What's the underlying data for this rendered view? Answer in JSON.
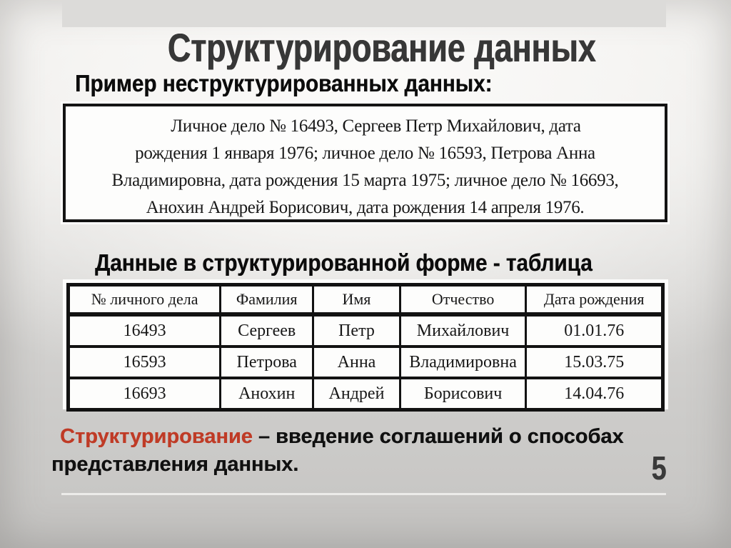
{
  "slide": {
    "title": "Структурирование данных",
    "page_number": "5"
  },
  "unstructured": {
    "label": "Пример неструктурированных данных:",
    "lines": [
      "Личное дело № 16493, Сергеев Петр Михайлович, дата",
      "рождения 1 января 1976; личное дело № 16593, Петрова Анна",
      "Владимировна, дата рождения 15 марта 1975; личное дело № 16693,",
      "Анохин Андрей Борисович, дата рождения 14 апреля 1976."
    ]
  },
  "structured": {
    "label": "Данные в структурированной форме - таблица",
    "table": {
      "headers": [
        "№ личного дела",
        "Фамилия",
        "Имя",
        "Отчество",
        "Дата рождения"
      ],
      "rows": [
        [
          "16493",
          "Сергеев",
          "Петр",
          "Михайлович",
          "01.01.76"
        ],
        [
          "16593",
          "Петрова",
          "Анна",
          "Владимировна",
          "15.03.75"
        ],
        [
          "16693",
          "Анохин",
          "Андрей",
          "Борисович",
          "14.04.76"
        ]
      ]
    }
  },
  "definition": {
    "term": "Структурирование",
    "rest_line1": " – введение соглашений о способах",
    "rest_line2": "представления данных."
  },
  "colors": {
    "accent_red": "#bf3b26",
    "title_ink": "#373737",
    "band_gray": "#dcdbd9"
  }
}
